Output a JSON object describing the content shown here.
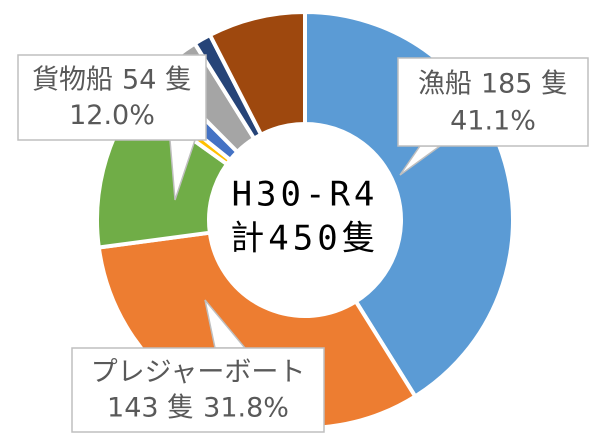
{
  "chart_data": {
    "type": "donut",
    "center_label": [
      "H30-R4",
      "計450隻"
    ],
    "categories": [
      "漁船",
      "プレジャーボート",
      "貨物船",
      null,
      null,
      null,
      null,
      null
    ],
    "values": [
      185,
      143,
      54,
      4,
      8,
      16,
      6,
      34
    ],
    "value_labels": [
      "185 隻",
      "143 隻",
      "54 隻",
      null,
      null,
      null,
      null,
      null
    ],
    "percents": [
      41.1,
      31.8,
      12.0,
      null,
      null,
      null,
      null,
      null
    ],
    "percent_labels": [
      "41.1%",
      "31.8%",
      "12.0%",
      null,
      null,
      null,
      null,
      null
    ],
    "colors": [
      "#5b9bd5",
      "#ed7d31",
      "#70ad47",
      "#ffc000",
      "#4472c4",
      "#a5a5a5",
      "#264478",
      "#9e480e"
    ]
  }
}
